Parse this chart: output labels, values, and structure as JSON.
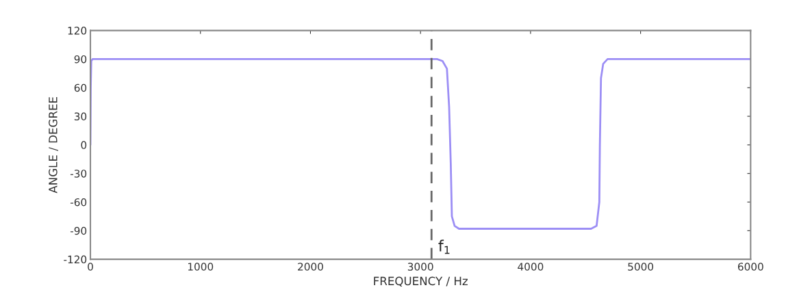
{
  "chart_data": {
    "type": "line",
    "xlabel": "FREQUENCY / Hz",
    "ylabel": "ANGLE / DEGREE",
    "x": [
      0,
      3,
      8,
      20,
      3150,
      3200,
      3240,
      3260,
      3275,
      3285,
      3310,
      3350,
      4550,
      4600,
      4625,
      4630,
      4640,
      4660,
      4700,
      6000
    ],
    "series": [
      {
        "color": "#9c8ef5",
        "values": [
          0,
          60,
          88,
          90,
          90,
          88,
          80,
          40,
          -20,
          -75,
          -85,
          -88,
          -88,
          -85,
          -60,
          0,
          70,
          85,
          90,
          90
        ]
      }
    ],
    "xlim": [
      0,
      6000
    ],
    "xticks": [
      0,
      1000,
      2000,
      3000,
      4000,
      5000,
      6000
    ],
    "ylim": [
      -120,
      120
    ],
    "yticks": [
      -120,
      -90,
      -60,
      -30,
      0,
      30,
      60,
      90,
      120
    ],
    "ref_lines": [
      {
        "axis": "x",
        "value": 3100,
        "label": "f$_{1}$",
        "color": "#666666",
        "line_style": "dashed"
      }
    ],
    "grid": false
  }
}
